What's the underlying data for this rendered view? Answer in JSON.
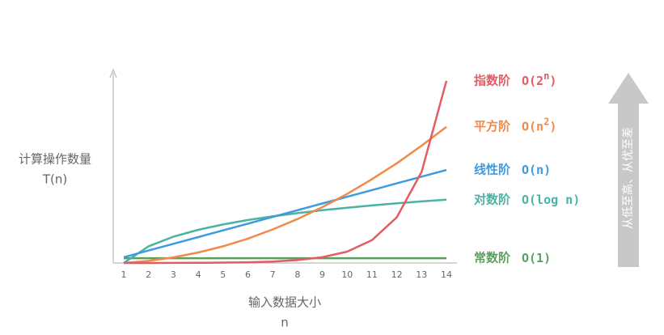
{
  "chart_data": {
    "type": "line",
    "y_label": "计算操作数量",
    "y_label_2": "T(n)",
    "x_label": "输入数据大小",
    "x_label_2": "n",
    "note": "从低至高、从优至差",
    "x": [
      1,
      2,
      3,
      4,
      5,
      6,
      7,
      8,
      9,
      10,
      11,
      12,
      13,
      14
    ],
    "xlim": [
      1,
      14
    ],
    "xticks": [
      1,
      2,
      3,
      4,
      5,
      6,
      7,
      8,
      9,
      10,
      11,
      12,
      13,
      14
    ],
    "ylim": [
      0,
      100
    ],
    "series": [
      {
        "name": "指数阶",
        "formula": [
          {
            "text": "O(2"
          },
          {
            "text": "n",
            "sup": true
          },
          {
            "text": ")"
          }
        ],
        "color": "#e45c63",
        "values": [
          0.01,
          0.02,
          0.05,
          0.09,
          0.19,
          0.37,
          0.74,
          1.5,
          3,
          5.9,
          11.9,
          23.8,
          47.5,
          95
        ]
      },
      {
        "name": "平方阶",
        "formula": [
          {
            "text": "O(n"
          },
          {
            "text": "2",
            "sup": true
          },
          {
            "text": ")"
          }
        ],
        "color": "#f08a4b",
        "values": [
          0,
          1.1,
          2.9,
          5.5,
          8.7,
          12.7,
          17.5,
          22.9,
          29.1,
          36,
          43.7,
          52,
          61.2,
          71
        ]
      },
      {
        "name": "线性阶",
        "formula": [
          {
            "text": "O(n)"
          }
        ],
        "color": "#3d9be0",
        "values": [
          3,
          6.5,
          10,
          13.5,
          17,
          20.5,
          24,
          27.5,
          31,
          34.5,
          38,
          41.5,
          45,
          48.5
        ]
      },
      {
        "name": "对数阶",
        "formula": [
          {
            "text": "O(log n)"
          }
        ],
        "color": "#4ab3a3",
        "values": [
          0,
          8.7,
          13.7,
          17.3,
          20.1,
          22.4,
          24.3,
          26,
          27.5,
          28.8,
          30,
          31.1,
          32.1,
          33
        ]
      },
      {
        "name": "常数阶",
        "formula": [
          {
            "text": "O(1)"
          }
        ],
        "color": "#5b9e5e",
        "values": [
          2.5,
          2.5,
          2.5,
          2.5,
          2.5,
          2.5,
          2.5,
          2.5,
          2.5,
          2.5,
          2.5,
          2.5,
          2.5,
          2.5
        ]
      }
    ]
  }
}
